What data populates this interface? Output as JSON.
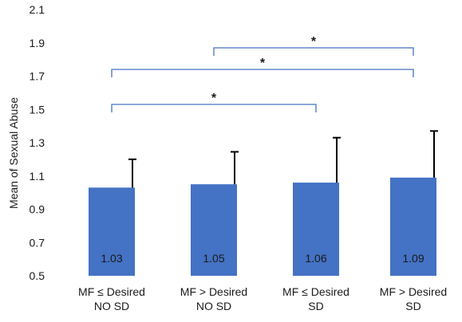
{
  "chart_data": {
    "type": "bar",
    "title": "",
    "xlabel": "",
    "ylabel": "Mean of Sexual Abuse",
    "ylim": [
      0.5,
      2.1
    ],
    "yticks": [
      "0.5",
      "0.7",
      "0.9",
      "1.1",
      "1.3",
      "1.5",
      "1.7",
      "1.9",
      "2.1"
    ],
    "grid": false,
    "categories": [
      [
        "MF ≤ Desired",
        "NO SD"
      ],
      [
        "MF > Desired",
        "NO SD"
      ],
      [
        "MF ≤ Desired",
        "SD"
      ],
      [
        "MF > Desired",
        "SD"
      ]
    ],
    "values": [
      1.03,
      1.05,
      1.06,
      1.09
    ],
    "value_labels": [
      "1.03",
      "1.05",
      "1.06",
      "1.09"
    ],
    "error_upper": [
      1.2,
      1.245,
      1.33,
      1.37
    ],
    "bar_color": "#4472C4",
    "bracket_color": "#4472C4",
    "significance": [
      {
        "from": 0,
        "to": 2,
        "label": "*",
        "y": 1.53
      },
      {
        "from": 0,
        "to": 3,
        "label": "*",
        "y": 1.74
      },
      {
        "from": 1,
        "to": 3,
        "label": "*",
        "y": 1.87
      }
    ]
  }
}
